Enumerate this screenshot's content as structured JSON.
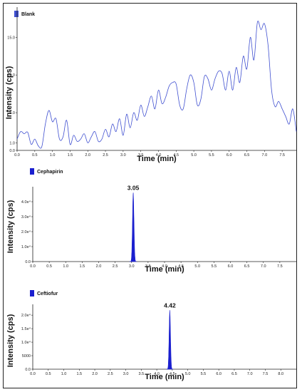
{
  "chart_data": [
    {
      "type": "line",
      "legend": "Blank",
      "xlabel": "Time (min)",
      "ylabel": "Intensity (cps)",
      "xlim": [
        0.0,
        7.9
      ],
      "xticks": [
        "0.0",
        "0.5",
        "1.0",
        "1.5",
        "2.0",
        "2.5",
        "3.0",
        "3.5",
        "4.0",
        "4.5",
        "5.0",
        "5.5",
        "6.0",
        "6.5",
        "7.0",
        "7.5"
      ],
      "ylim": [
        0.0,
        19.0
      ],
      "yticks": [
        {
          "value": 0.0,
          "label": "0.0"
        },
        {
          "value": 1.0,
          "label": "1.0"
        },
        {
          "value": 5.0,
          "label": "5.0"
        },
        {
          "value": 10.0,
          "label": "10.0"
        },
        {
          "value": 15.0,
          "label": "15.0"
        }
      ],
      "x": [
        0.0,
        0.1,
        0.2,
        0.3,
        0.4,
        0.5,
        0.6,
        0.7,
        0.8,
        0.9,
        1.0,
        1.1,
        1.2,
        1.3,
        1.4,
        1.5,
        1.6,
        1.7,
        1.8,
        1.9,
        2.0,
        2.1,
        2.2,
        2.3,
        2.4,
        2.5,
        2.6,
        2.7,
        2.8,
        2.9,
        3.0,
        3.1,
        3.2,
        3.3,
        3.4,
        3.5,
        3.6,
        3.7,
        3.8,
        3.9,
        4.0,
        4.1,
        4.2,
        4.3,
        4.4,
        4.5,
        4.6,
        4.7,
        4.8,
        4.9,
        5.0,
        5.1,
        5.2,
        5.3,
        5.4,
        5.5,
        5.6,
        5.7,
        5.8,
        5.9,
        6.0,
        6.1,
        6.2,
        6.3,
        6.4,
        6.5,
        6.6,
        6.7,
        6.8,
        6.9,
        7.0,
        7.1,
        7.2,
        7.3,
        7.4,
        7.5,
        7.6,
        7.7,
        7.8,
        7.9
      ],
      "y": [
        1.5,
        2.5,
        2.2,
        2.4,
        0.8,
        1.5,
        0.6,
        0.5,
        3.5,
        5.3,
        3.8,
        4.2,
        1.5,
        1.8,
        4.0,
        0.8,
        2.0,
        1.2,
        1.5,
        2.2,
        1.0,
        1.8,
        2.5,
        1.2,
        1.5,
        2.8,
        1.8,
        3.5,
        2.5,
        4.2,
        2.0,
        4.8,
        3.0,
        5.0,
        4.0,
        6.0,
        4.5,
        5.8,
        7.2,
        5.5,
        8.0,
        6.2,
        7.0,
        8.5,
        9.0,
        8.8,
        6.0,
        5.5,
        8.2,
        10.0,
        9.0,
        6.0,
        6.8,
        9.8,
        9.5,
        8.0,
        9.5,
        10.5,
        10.2,
        8.0,
        10.5,
        8.0,
        11.0,
        9.0,
        12.5,
        10.8,
        15.0,
        12.0,
        17.0,
        16.0,
        16.8,
        14.0,
        8.0,
        5.8,
        6.5,
        5.5,
        4.5,
        3.5,
        5.5,
        2.5
      ],
      "color": "#3f4fd0"
    },
    {
      "type": "line",
      "legend": "Cephapirin",
      "xlabel": "Time (min)",
      "ylabel": "Intensity (cps)",
      "xlim": [
        0.0,
        8.0
      ],
      "xticks": [
        "0.0",
        "0.5",
        "1.0",
        "1.5",
        "2.0",
        "2.5",
        "3.0",
        "3.5",
        "4.0",
        "4.5",
        "5.0",
        "5.5",
        "6.0",
        "6.5",
        "7.0",
        "7.5"
      ],
      "ylim": [
        0.0,
        5.0
      ],
      "yticks": [
        {
          "value": 0.0,
          "label": "0.0"
        },
        {
          "value": 1.0,
          "label": "1.0e⁴"
        },
        {
          "value": 2.0,
          "label": "2.0e⁴"
        },
        {
          "value": 3.0,
          "label": "3.0e⁴"
        },
        {
          "value": 4.0,
          "label": "4.0e⁴"
        }
      ],
      "peak": {
        "rt": 3.05,
        "label": "3.05",
        "height": 4.6,
        "width": 0.07
      },
      "color": "#1a1fcf"
    },
    {
      "type": "line",
      "legend": "Ceftiofur",
      "xlabel": "Time (min)",
      "ylabel": "Intensity (cps)",
      "xlim": [
        0.0,
        8.5
      ],
      "xticks": [
        "0.0",
        "0.5",
        "1.0",
        "1.5",
        "2.0",
        "2.5",
        "3.0",
        "3.5",
        "4.0",
        "4.5",
        "5.0",
        "5.5",
        "6.0",
        "6.5",
        "7.0",
        "7.5",
        "8.0"
      ],
      "ylim": [
        0.0,
        24000
      ],
      "yticks": [
        {
          "value": 0,
          "label": "0.0"
        },
        {
          "value": 5000,
          "label": "5000"
        },
        {
          "value": 10000,
          "label": "1.0e⁴"
        },
        {
          "value": 15000,
          "label": "1.5e⁴"
        },
        {
          "value": 20000,
          "label": "2.0e⁴"
        }
      ],
      "peak": {
        "rt": 4.42,
        "label": "4.42",
        "height": 21800,
        "width": 0.07
      },
      "color": "#1a1fcf"
    }
  ]
}
